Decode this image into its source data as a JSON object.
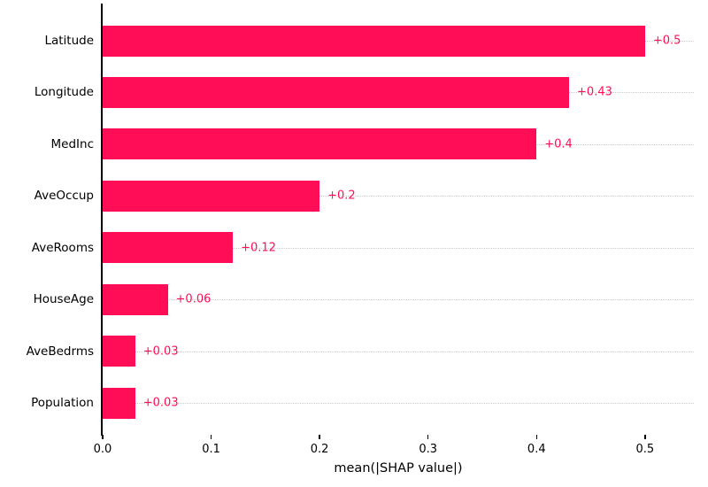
{
  "chart_data": {
    "type": "bar",
    "orientation": "horizontal",
    "title": "",
    "categories": [
      "Latitude",
      "Longitude",
      "MedInc",
      "AveOccup",
      "AveRooms",
      "HouseAge",
      "AveBedrms",
      "Population"
    ],
    "values": [
      0.5,
      0.43,
      0.4,
      0.2,
      0.12,
      0.06,
      0.03,
      0.03
    ],
    "value_labels": [
      "+0.5",
      "+0.43",
      "+0.4",
      "+0.2",
      "+0.12",
      "+0.06",
      "+0.03",
      "+0.03"
    ],
    "xlabel": "mean(|SHAP value|)",
    "ylabel": "",
    "xticks": [
      0,
      0.1,
      0.2,
      0.3,
      0.4,
      0.5
    ],
    "xtick_labels": [
      "0.0",
      "0.1",
      "0.2",
      "0.3",
      "0.4",
      "0.5"
    ],
    "xlim": [
      0,
      0.545
    ],
    "bar_color": "#ff0d57",
    "value_label_color": "#ff0d57",
    "gridline_style": "dotted",
    "gridline_color": "#cccccc",
    "legend": "none"
  }
}
